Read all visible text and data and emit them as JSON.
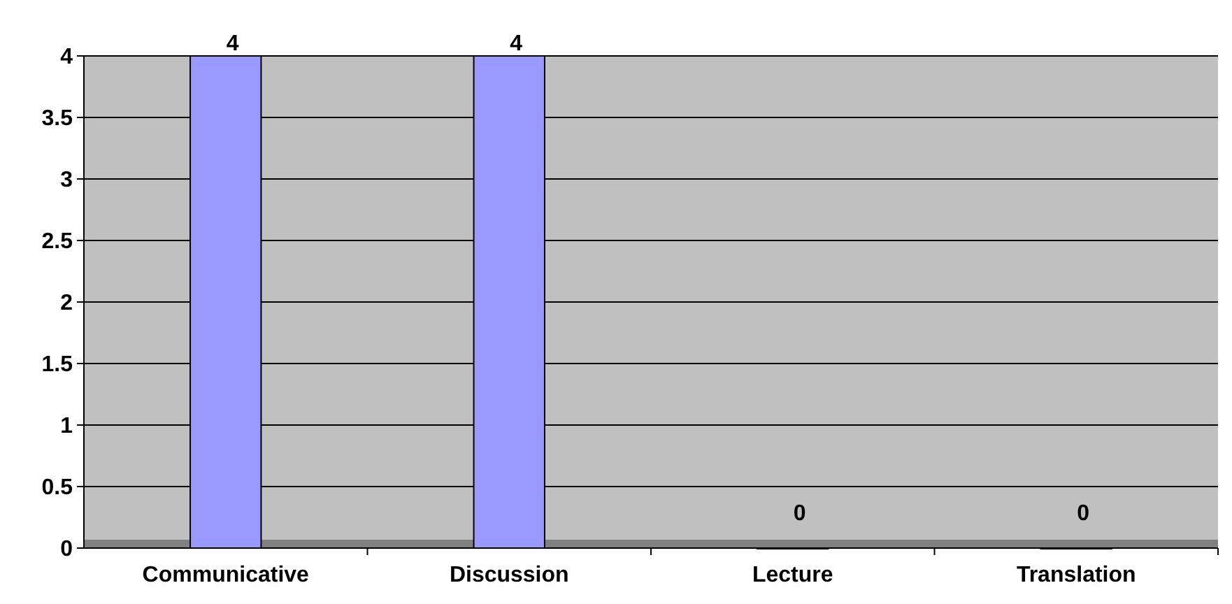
{
  "chart_data": {
    "type": "bar",
    "categories": [
      "Communicative",
      "Discussion",
      "Lecture",
      "Translation"
    ],
    "values": [
      4,
      4,
      0,
      0
    ],
    "color": "#9999ff",
    "ylim": [
      0,
      4
    ],
    "yticks": [
      0,
      0.5,
      1,
      1.5,
      2,
      2.5,
      3,
      3.5,
      4
    ],
    "grid": "y",
    "data_labels": true
  }
}
